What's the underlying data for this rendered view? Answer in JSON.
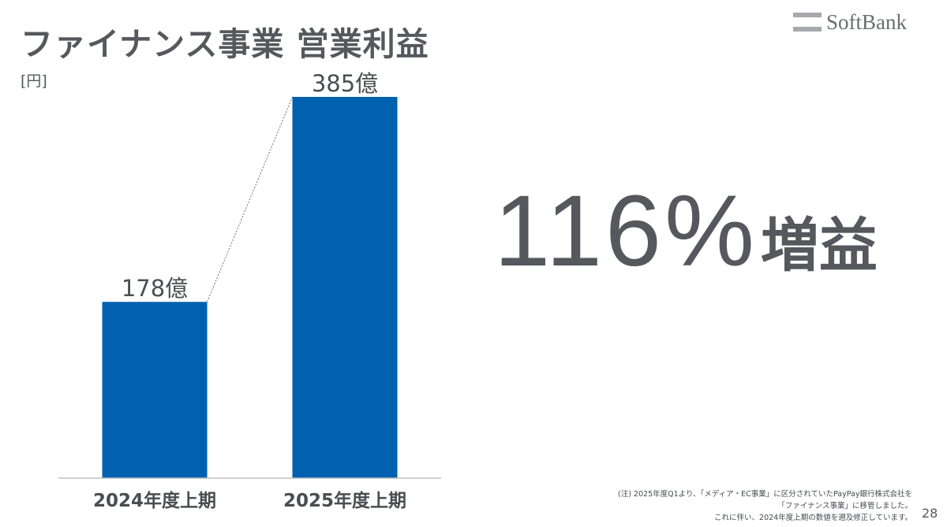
{
  "title": "ファイナンス事業 営業利益",
  "logo_text": "SoftBank",
  "unit_label": "[円]",
  "highlight": {
    "number": "116%",
    "suffix": "増益"
  },
  "footnote": [
    "(注) 2025年度Q1より、「メディア・EC事業」に区分されていたPayPay銀行株式会社を",
    "「ファイナンス事業」に移管しました。",
    "これに伴い、2024年度上期の数値を遡及修正しています。"
  ],
  "page_number": "28",
  "chart_data": {
    "type": "bar",
    "categories": [
      "2024年度上期",
      "2025年度上期"
    ],
    "values": [
      178,
      385
    ],
    "data_labels": [
      "178億",
      "385億"
    ],
    "ylabel": "[円]",
    "unit": "億",
    "ylim": [
      0,
      400
    ],
    "grid": false,
    "bar_color": "#0061b0"
  }
}
